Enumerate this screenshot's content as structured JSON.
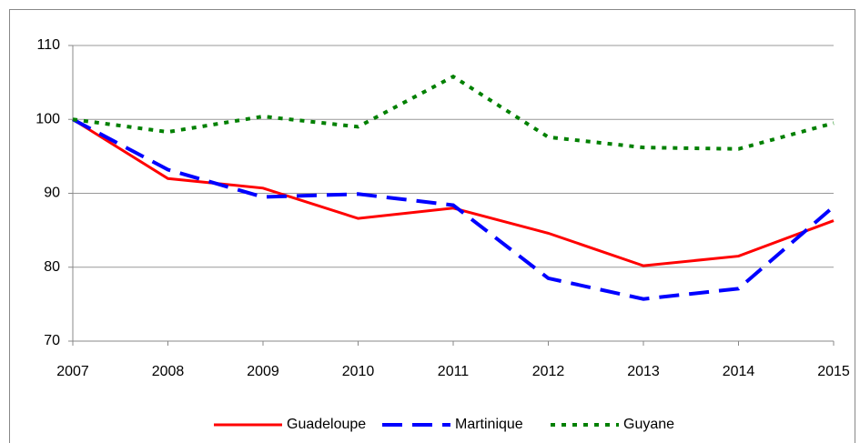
{
  "chart_data": {
    "type": "line",
    "x": [
      2007,
      2008,
      2009,
      2010,
      2011,
      2012,
      2013,
      2014,
      2015
    ],
    "xlim": [
      2007,
      2015
    ],
    "xticks": [
      2007,
      2008,
      2009,
      2010,
      2011,
      2012,
      2013,
      2014,
      2015
    ],
    "ylim": [
      70,
      110
    ],
    "yticks": [
      70,
      80,
      90,
      100,
      110
    ],
    "grid": true,
    "legend": "bottom",
    "series": [
      {
        "name": "Guadeloupe",
        "color": "#ff0000",
        "dash": "solid",
        "values": [
          100,
          92,
          90.7,
          86.6,
          88,
          84.6,
          80.2,
          81.5,
          86.3
        ]
      },
      {
        "name": "Martinique",
        "color": "#0000ff",
        "dash": "dashed",
        "values": [
          100,
          93.2,
          89.5,
          89.9,
          88.4,
          78.5,
          75.7,
          77.1,
          88.2
        ]
      },
      {
        "name": "Guyane",
        "color": "#008000",
        "dash": "dotted",
        "values": [
          100,
          98.3,
          100.4,
          99,
          105.8,
          97.6,
          96.2,
          96,
          99.5
        ]
      }
    ]
  }
}
